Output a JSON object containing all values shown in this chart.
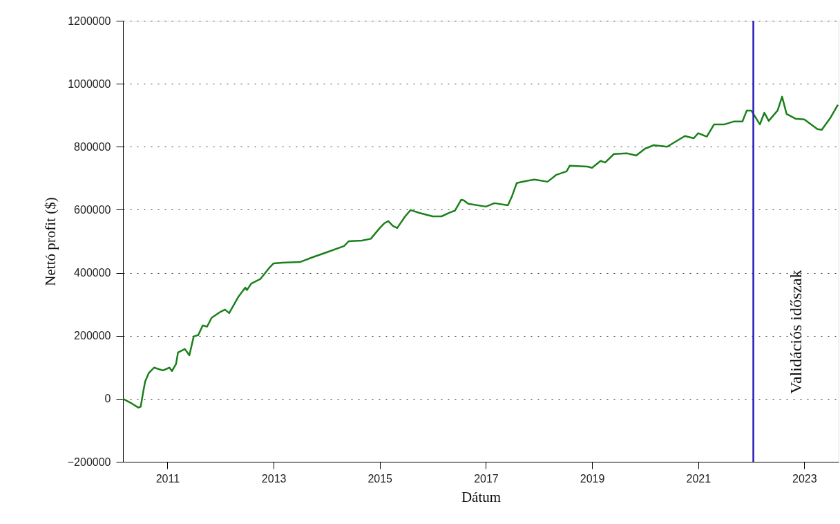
{
  "chart_data": {
    "type": "line",
    "xlabel": "Dátum",
    "ylabel": "Nettó profit ($)",
    "x": [
      "2010-03-01",
      "2010-05-01",
      "2010-06-15",
      "2010-07-01",
      "2010-07-20",
      "2010-08-01",
      "2010-08-25",
      "2010-10-01",
      "2010-12-01",
      "2011-01-15",
      "2011-02-01",
      "2011-03-01",
      "2011-03-15",
      "2011-05-01",
      "2011-06-01",
      "2011-07-01",
      "2011-08-01",
      "2011-09-01",
      "2011-10-01",
      "2011-11-01",
      "2012-01-01",
      "2012-02-01",
      "2012-03-01",
      "2012-05-01",
      "2012-06-20",
      "2012-07-01",
      "2012-08-01",
      "2012-10-01",
      "2012-12-01",
      "2013-01-01",
      "2013-03-01",
      "2013-07-01",
      "2013-10-01",
      "2014-01-01",
      "2014-05-01",
      "2014-06-01",
      "2014-09-01",
      "2014-11-01",
      "2015-01-01",
      "2015-02-01",
      "2015-03-01",
      "2015-04-01",
      "2015-05-01",
      "2015-06-25",
      "2015-08-01",
      "2015-10-01",
      "2016-01-01",
      "2016-03-01",
      "2016-05-01",
      "2016-06-01",
      "2016-07-15",
      "2016-08-01",
      "2016-09-01",
      "2017-01-01",
      "2017-03-01",
      "2017-06-01",
      "2017-07-01",
      "2017-08-01",
      "2017-10-01",
      "2017-12-01",
      "2018-03-01",
      "2018-05-01",
      "2018-07-10",
      "2018-08-01",
      "2018-12-01",
      "2019-01-01",
      "2019-03-01",
      "2019-04-01",
      "2019-06-01",
      "2019-09-01",
      "2019-11-01",
      "2020-01-01",
      "2020-03-01",
      "2020-06-01",
      "2020-10-01",
      "2020-12-01",
      "2021-01-01",
      "2021-03-01",
      "2021-04-20",
      "2021-07-01",
      "2021-09-01",
      "2021-11-01",
      "2021-12-01",
      "2022-01-01",
      "2022-03-01",
      "2022-04-01",
      "2022-05-01",
      "2022-07-01",
      "2022-08-01",
      "2022-09-01",
      "2022-11-01",
      "2023-01-01",
      "2023-04-01",
      "2023-05-01",
      "2023-07-01",
      "2023-08-20"
    ],
    "series": [
      {
        "color": "#1a801a",
        "values": [
          0,
          -15000,
          -28000,
          -25000,
          26000,
          55000,
          81000,
          99000,
          90000,
          99000,
          88000,
          110000,
          147000,
          158000,
          138000,
          198000,
          202000,
          233000,
          229000,
          257000,
          276000,
          283000,
          272000,
          322000,
          353000,
          345000,
          366000,
          380000,
          415000,
          430000,
          432000,
          434000,
          450000,
          465000,
          485000,
          500000,
          502000,
          508000,
          542000,
          557000,
          564000,
          549000,
          542000,
          579000,
          599000,
          590000,
          579000,
          579000,
          592000,
          597000,
          632000,
          630000,
          619000,
          610000,
          621000,
          614000,
          645000,
          685000,
          691000,
          696000,
          689000,
          711000,
          722000,
          740000,
          737000,
          733000,
          755000,
          750000,
          777000,
          779000,
          772000,
          794000,
          805000,
          800000,
          834000,
          827000,
          843000,
          832000,
          871000,
          871000,
          880000,
          880000,
          915000,
          915000,
          871000,
          908000,
          882000,
          915000,
          959000,
          904000,
          889000,
          887000,
          856000,
          854000,
          893000,
          933000
        ]
      }
    ],
    "xlim": [
      "2010-03-01",
      "2023-08-25"
    ],
    "xticks": [
      "2011",
      "2013",
      "2015",
      "2017",
      "2019",
      "2021",
      "2023"
    ],
    "ylim": [
      -200000,
      1200000
    ],
    "yticks": [
      -200000,
      0,
      200000,
      400000,
      600000,
      800000,
      1000000,
      1200000
    ],
    "grid": "y",
    "marker": "none",
    "line_style": "solid",
    "ref_lines": [
      {
        "axis": "x",
        "value": "2022-01-15",
        "label": "Validációs időszak",
        "color": "#2a1ab8"
      }
    ]
  }
}
